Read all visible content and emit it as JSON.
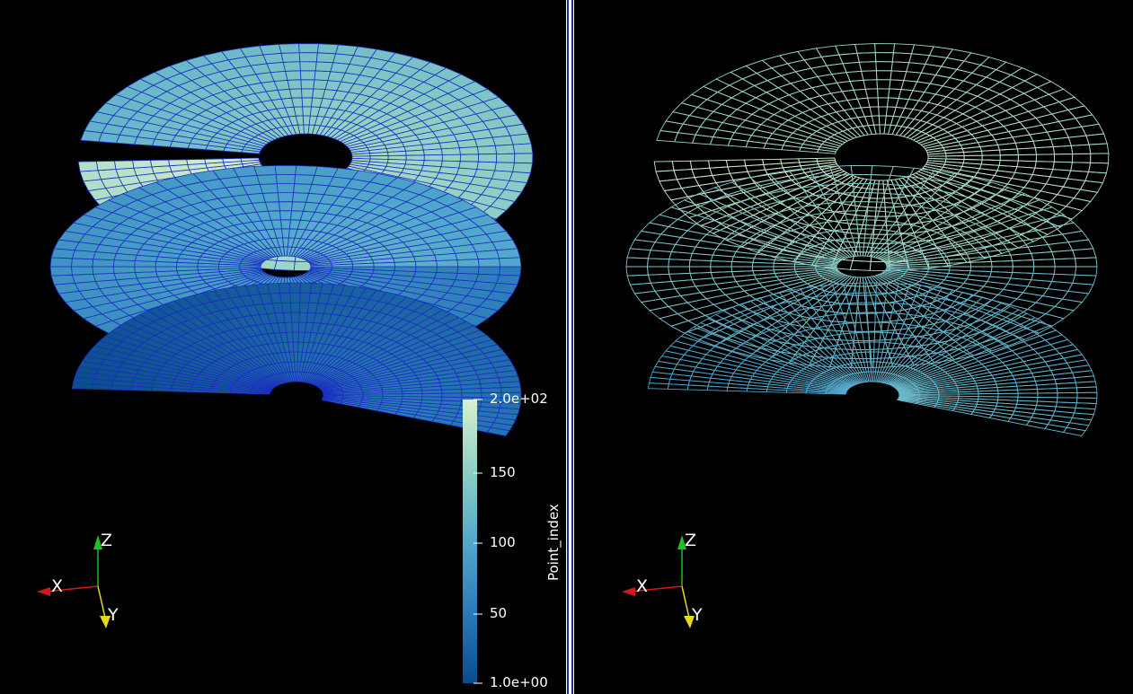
{
  "views": {
    "left": {
      "representation": "Surface With Edges",
      "colorbar": {
        "title": "Point_index",
        "max_label": "2.0e+02",
        "min_label": "1.0e+00",
        "ticks": [
          "150",
          "100",
          "50"
        ],
        "colors": [
          "#0a4c8c",
          "#2a7ab8",
          "#52a8cc",
          "#8ecfc4",
          "#d8f0cf"
        ]
      },
      "axes": {
        "x": "X",
        "y": "Y",
        "z": "Z"
      }
    },
    "right": {
      "representation": "Wireframe",
      "axes": {
        "x": "X",
        "y": "Y",
        "z": "Z"
      }
    }
  },
  "colors": {
    "background": "#000000",
    "divider": "#ffffff",
    "divider_accent": "#1e2d9c",
    "edge_color": "#1a2fbf",
    "axis_x": "#d11b1b",
    "axis_y": "#e7d91a",
    "axis_z": "#1ec21e"
  }
}
